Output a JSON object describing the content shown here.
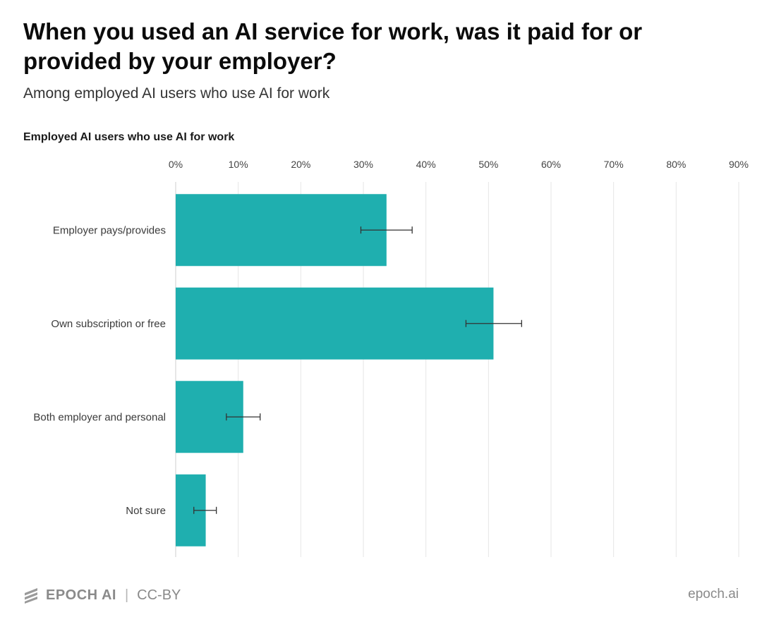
{
  "title": "When you used an AI service for work, was it paid for or provided by your employer?",
  "subtitle": "Among employed AI users who use AI for work",
  "footer": {
    "brand": "EPOCH AI",
    "separator": "|",
    "license": "CC-BY",
    "site": "epoch.ai"
  },
  "colors": {
    "bar": "#1fafaf",
    "grid": "#e6e6e6",
    "error_bar": "#333333"
  },
  "chart_data": {
    "type": "bar",
    "orientation": "horizontal",
    "series": [
      {
        "name": "Employed AI users who use AI for work",
        "categories": [
          "Employer pays/provides",
          "Own subscription or free",
          "Both employer and personal",
          "Not sure"
        ],
        "values": [
          33.7,
          50.8,
          10.8,
          4.8
        ],
        "error_low": [
          29.6,
          46.4,
          8.1,
          2.9
        ],
        "error_high": [
          37.8,
          55.3,
          13.5,
          6.5
        ]
      }
    ],
    "x_ticks": [
      "0%",
      "10%",
      "20%",
      "30%",
      "40%",
      "50%",
      "60%",
      "70%",
      "80%",
      "90%"
    ],
    "xlim": [
      0,
      90
    ],
    "x_unit": "%",
    "grid": true
  }
}
